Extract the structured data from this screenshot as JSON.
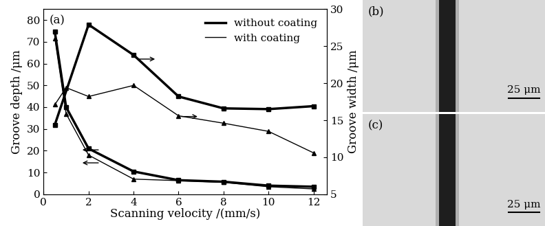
{
  "chart_data": {
    "type": "line",
    "panel_label": "(a)",
    "x_label": "Scanning velocity /(mm/s)",
    "y_label": "Groove depth /μm",
    "y2_label": "Groove width /μm",
    "x": [
      0.5,
      1,
      2,
      4,
      6,
      8,
      10,
      12
    ],
    "xlim": [
      0,
      12.6
    ],
    "xticks": [
      0,
      2,
      4,
      6,
      8,
      10,
      12
    ],
    "ylim": [
      0,
      85
    ],
    "yticks": [
      0,
      10,
      20,
      30,
      40,
      50,
      60,
      70,
      80
    ],
    "y2lim": [
      5,
      30
    ],
    "y2ticks": [
      5,
      10,
      15,
      20,
      25,
      30
    ],
    "legend": "upper right",
    "grid": false,
    "series": [
      {
        "name": "without coating",
        "color": "#000000",
        "marker": "square",
        "line_style": "solid",
        "values": [
          74.5,
          40,
          21,
          10.5,
          6.5,
          5.8,
          4,
          3.5
        ]
      },
      {
        "name": "with coating",
        "color": "#000000",
        "marker": "triangle",
        "line_style": "solid",
        "values": [
          71.5,
          37,
          18,
          7,
          6.3,
          5.5,
          3.5,
          2.5
        ]
      },
      {
        "name": "without coating",
        "color": "#000000",
        "marker": "square",
        "line_style": "solid",
        "axis": "y2",
        "values": [
          14.4,
          null,
          27.9,
          23.8,
          18.2,
          16.6,
          16.5,
          16.9
        ]
      },
      {
        "name": "with coating",
        "color": "#000000",
        "marker": "triangle",
        "line_style": "solid",
        "axis": "y2",
        "values": [
          17.1,
          19.4,
          18.2,
          19.7,
          15.6,
          14.6,
          13.5,
          10.6
        ]
      }
    ]
  },
  "micrographs": [
    {
      "label": "(b)",
      "scale_bar": "25 μm"
    },
    {
      "label": "(c)",
      "scale_bar": "25 μm"
    }
  ]
}
